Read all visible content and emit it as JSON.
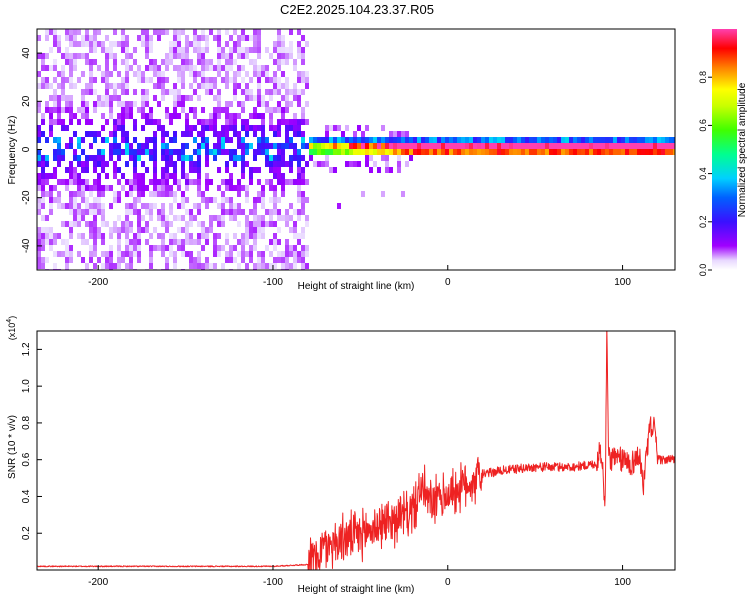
{
  "title": "C2E2.2025.104.23.37.R05",
  "colors": {
    "spectrogram_cmap": [
      "#a000ff",
      "#4a10ff",
      "#0a50ff",
      "#00ccff",
      "#00ff60",
      "#aaff00",
      "#ffff00",
      "#ff8000",
      "#ff0000",
      "#ff40b0"
    ],
    "snr_line": "#ee2222",
    "frame": "#000000"
  },
  "chart_data": [
    {
      "type": "heatmap",
      "name": "spectrogram",
      "xlabel": "Height of straight line (km)",
      "ylabel": "Frequency (Hz)",
      "xlim": [
        -235,
        130
      ],
      "ylim": [
        -50,
        50
      ],
      "xticks": [
        -200,
        -100,
        0,
        100
      ],
      "yticks": [
        -40,
        -20,
        0,
        20,
        40
      ],
      "colorbar": {
        "label": "Normalized spectral amplitude",
        "range": [
          0,
          1
        ],
        "ticks": [
          0,
          0.2,
          0.4,
          0.6,
          0.8
        ]
      },
      "features": {
        "noise_region_x": [
          -235,
          -80
        ],
        "noise_region_y": [
          -50,
          50
        ],
        "noise_level": 0.1,
        "signal_onset_x": -80,
        "signal_band_y": [
          -3,
          4
        ],
        "signal_center_y": 1,
        "signal_peak_level": 0.95
      }
    },
    {
      "type": "line",
      "name": "snr",
      "xlabel": "Height of straight line (km)",
      "ylabel": "SNR (10 * v/v)",
      "y_multiplier": "(x10^4)",
      "xlim": [
        -235,
        130
      ],
      "ylim": [
        0,
        1.3
      ],
      "xticks": [
        -200,
        -100,
        0,
        100
      ],
      "yticks": [
        0.2,
        0.4,
        0.6,
        0.8,
        1.0,
        1.2
      ],
      "series": [
        {
          "x": [
            -235,
            -200,
            -150,
            -100,
            -80,
            -70,
            -60,
            -50,
            -40,
            -30,
            -20,
            -15,
            -10,
            0,
            10,
            20,
            30,
            40,
            50,
            60,
            70,
            80,
            85,
            88,
            90,
            91,
            92,
            95,
            100,
            105,
            110,
            112,
            115,
            118,
            120,
            125,
            130
          ],
          "y": [
            0.02,
            0.02,
            0.02,
            0.02,
            0.03,
            0.13,
            0.17,
            0.19,
            0.24,
            0.28,
            0.32,
            0.45,
            0.36,
            0.41,
            0.46,
            0.52,
            0.54,
            0.55,
            0.56,
            0.56,
            0.56,
            0.57,
            0.58,
            0.66,
            0.3,
            1.29,
            0.62,
            0.6,
            0.6,
            0.58,
            0.62,
            0.44,
            0.75,
            0.8,
            0.6,
            0.6,
            0.6
          ]
        }
      ]
    }
  ]
}
